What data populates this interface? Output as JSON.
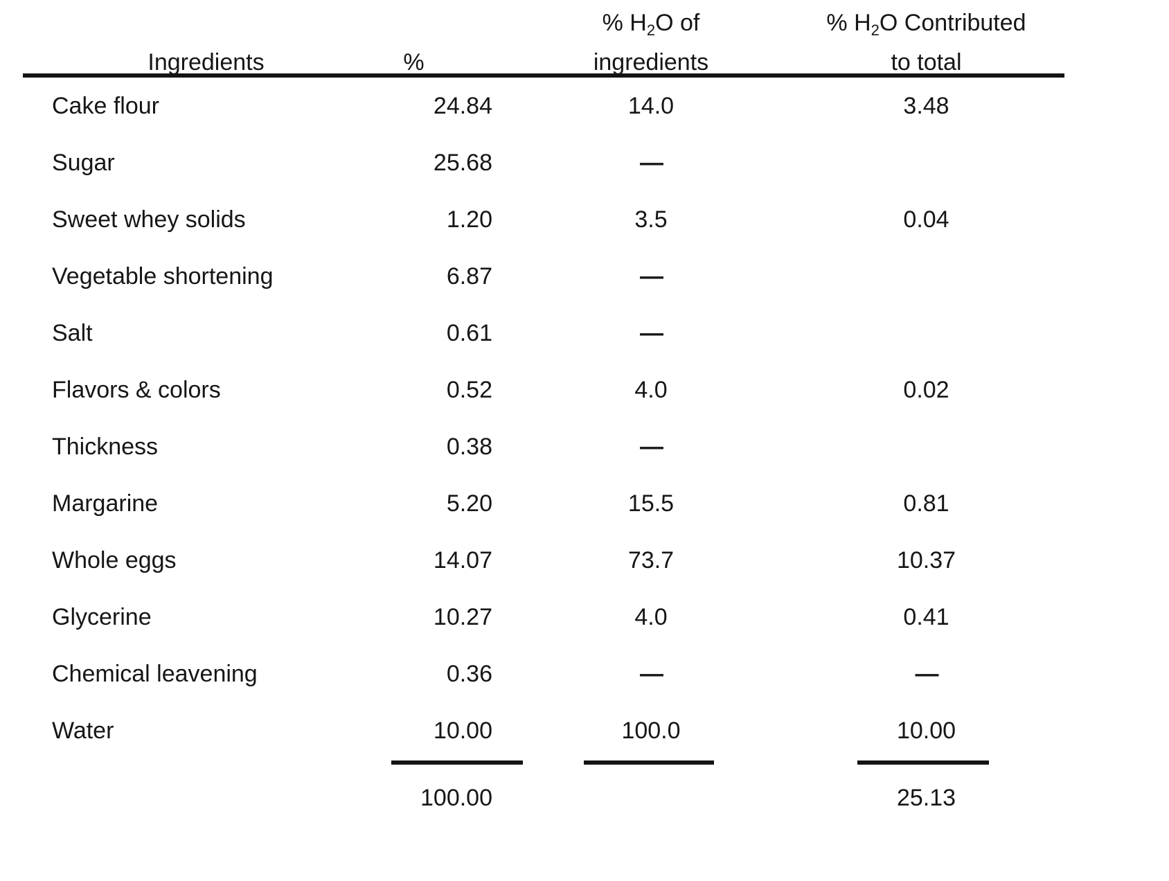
{
  "table": {
    "header": {
      "col1": "Ingredients",
      "col2": "%",
      "col3": {
        "pre": "% H",
        "sub": "2",
        "post": "O of",
        "line2": "ingredients"
      },
      "col4": {
        "pre": "% H",
        "sub": "2",
        "post": "O Contributed",
        "line2": "to total"
      }
    },
    "rows": [
      {
        "name": "Cake flour",
        "pct": "24.84",
        "h2o": "14.0",
        "contrib": "3.48"
      },
      {
        "name": "Sugar",
        "pct": "25.68",
        "h2o": "—",
        "contrib": ""
      },
      {
        "name": "Sweet whey solids",
        "pct": "1.20",
        "h2o": "3.5",
        "contrib": "0.04"
      },
      {
        "name": "Vegetable shortening",
        "pct": "6.87",
        "h2o": "—",
        "contrib": ""
      },
      {
        "name": "Salt",
        "pct": "0.61",
        "h2o": "—",
        "contrib": ""
      },
      {
        "name": "Flavors & colors",
        "pct": "0.52",
        "h2o": "4.0",
        "contrib": "0.02"
      },
      {
        "name": "Thickness",
        "pct": "0.38",
        "h2o": "—",
        "contrib": ""
      },
      {
        "name": "Margarine",
        "pct": "5.20",
        "h2o": "15.5",
        "contrib": "0.81"
      },
      {
        "name": "Whole eggs",
        "pct": "14.07",
        "h2o": "73.7",
        "contrib": "10.37"
      },
      {
        "name": "Glycerine",
        "pct": "10.27",
        "h2o": "4.0",
        "contrib": "0.41"
      },
      {
        "name": "Chemical leavening",
        "pct": "0.36",
        "h2o": "—",
        "contrib": "—"
      },
      {
        "name": "Water",
        "pct": "10.00",
        "h2o": "100.0",
        "contrib": "10.00"
      }
    ],
    "totals": {
      "pct": "100.00",
      "h2o": "",
      "contrib": "25.13"
    }
  }
}
